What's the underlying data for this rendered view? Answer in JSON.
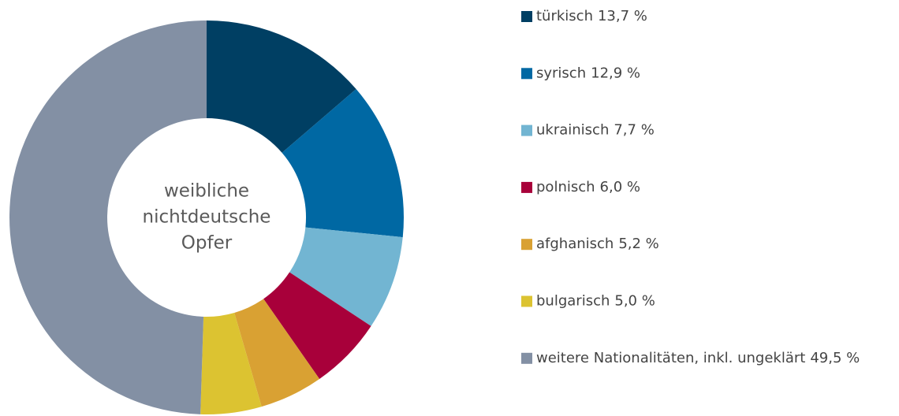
{
  "chart_data": {
    "type": "donut",
    "center_label": [
      "weibliche",
      "nichtdeutsche",
      "Opfer"
    ],
    "series": [
      {
        "name": "türkisch",
        "color": "#003f63",
        "values": [
          13.7
        ],
        "value_labels": [
          "13,7 %"
        ]
      },
      {
        "name": "syrisch",
        "color": "#0068a3",
        "values": [
          12.9
        ],
        "value_labels": [
          "12,9 %"
        ]
      },
      {
        "name": "ukrainisch",
        "color": "#72b5d2",
        "values": [
          7.7
        ],
        "value_labels": [
          "7,7 %"
        ]
      },
      {
        "name": "polnisch",
        "color": "#a8003a",
        "values": [
          6.0
        ],
        "value_labels": [
          "6,0 %"
        ]
      },
      {
        "name": "afghanisch",
        "color": "#d9a133",
        "values": [
          5.2
        ],
        "value_labels": [
          "5,2 %"
        ]
      },
      {
        "name": "bulgarisch",
        "color": "#dcc331",
        "values": [
          5.0
        ],
        "value_labels": [
          "5,0 %"
        ]
      },
      {
        "name": "weitere Nationalitäten, inkl. ungeklärt",
        "color": "#8390a4",
        "values": [
          49.5
        ],
        "value_labels": [
          "49,5 %"
        ]
      }
    ],
    "legend": "right"
  }
}
